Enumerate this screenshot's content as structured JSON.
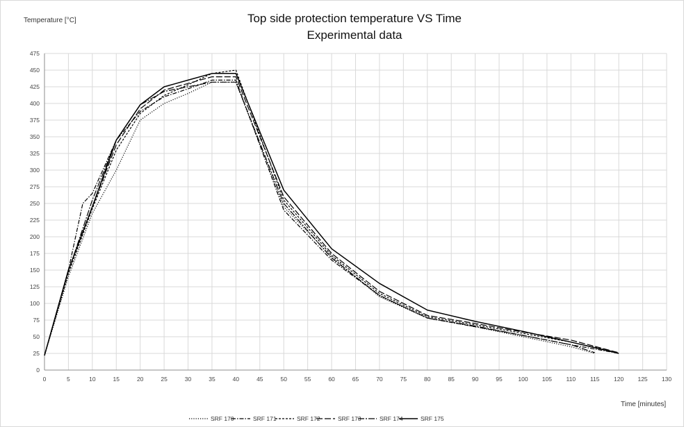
{
  "chart_data": {
    "type": "line",
    "title": "Top side protection temperature VS Time",
    "subtitle": "Experimental data",
    "xlabel": "Time  [minutes]",
    "ylabel": "Temperature [°C]",
    "xlim": [
      0,
      130
    ],
    "ylim": [
      0,
      475
    ],
    "xticks": [
      0,
      5,
      10,
      15,
      20,
      25,
      30,
      35,
      40,
      45,
      50,
      55,
      60,
      65,
      70,
      75,
      80,
      85,
      90,
      95,
      100,
      105,
      110,
      115,
      120,
      125,
      130
    ],
    "yticks": [
      0,
      25,
      50,
      75,
      100,
      125,
      150,
      175,
      200,
      225,
      250,
      275,
      300,
      325,
      350,
      375,
      400,
      425,
      450,
      475
    ],
    "grid": true,
    "legend_position": "bottom",
    "series": [
      {
        "name": "SRF 170",
        "dash": "1.2 2",
        "x": [
          0,
          5,
          10,
          15,
          20,
          25,
          30,
          35,
          40,
          50,
          60,
          70,
          80,
          90,
          100,
          110,
          115
        ],
        "y": [
          22,
          140,
          235,
          300,
          375,
          400,
          415,
          432,
          432,
          245,
          170,
          110,
          78,
          65,
          50,
          35,
          25
        ]
      },
      {
        "name": "SRF 171",
        "dash": "6 2 1.5 2",
        "x": [
          0,
          5,
          8,
          10,
          15,
          20,
          25,
          30,
          35,
          40,
          50,
          60,
          70,
          80,
          90,
          100,
          110,
          120
        ],
        "y": [
          22,
          150,
          250,
          265,
          345,
          388,
          410,
          422,
          435,
          435,
          240,
          165,
          112,
          78,
          65,
          52,
          38,
          25
        ]
      },
      {
        "name": "SRF 172",
        "dash": "3 2",
        "x": [
          0,
          5,
          10,
          15,
          20,
          25,
          30,
          35,
          40,
          50,
          60,
          70,
          80,
          90,
          100,
          110,
          120
        ],
        "y": [
          22,
          145,
          242,
          330,
          385,
          412,
          428,
          445,
          450,
          255,
          172,
          115,
          80,
          68,
          55,
          42,
          26
        ]
      },
      {
        "name": "SRF 173",
        "dash": "9 3",
        "x": [
          0,
          5,
          10,
          15,
          20,
          25,
          30,
          35,
          40,
          50,
          60,
          70,
          80,
          90,
          100,
          110,
          120
        ],
        "y": [
          22,
          150,
          245,
          338,
          392,
          420,
          430,
          440,
          440,
          260,
          175,
          118,
          82,
          70,
          57,
          45,
          26
        ]
      },
      {
        "name": "SRF 174",
        "dash": "9 2 2 2",
        "x": [
          0,
          5,
          10,
          15,
          20,
          25,
          30,
          35,
          40,
          50,
          60,
          70,
          80,
          90,
          100,
          110,
          115
        ],
        "y": [
          22,
          148,
          255,
          345,
          398,
          418,
          425,
          432,
          432,
          250,
          168,
          112,
          78,
          66,
          52,
          38,
          26
        ]
      },
      {
        "name": "SRF 175",
        "dash": "",
        "x": [
          0,
          5,
          10,
          15,
          20,
          25,
          30,
          35,
          40,
          50,
          60,
          70,
          80,
          90,
          100,
          110,
          120
        ],
        "y": [
          22,
          150,
          245,
          345,
          398,
          425,
          435,
          445,
          445,
          270,
          182,
          130,
          90,
          73,
          58,
          42,
          25
        ]
      }
    ]
  }
}
